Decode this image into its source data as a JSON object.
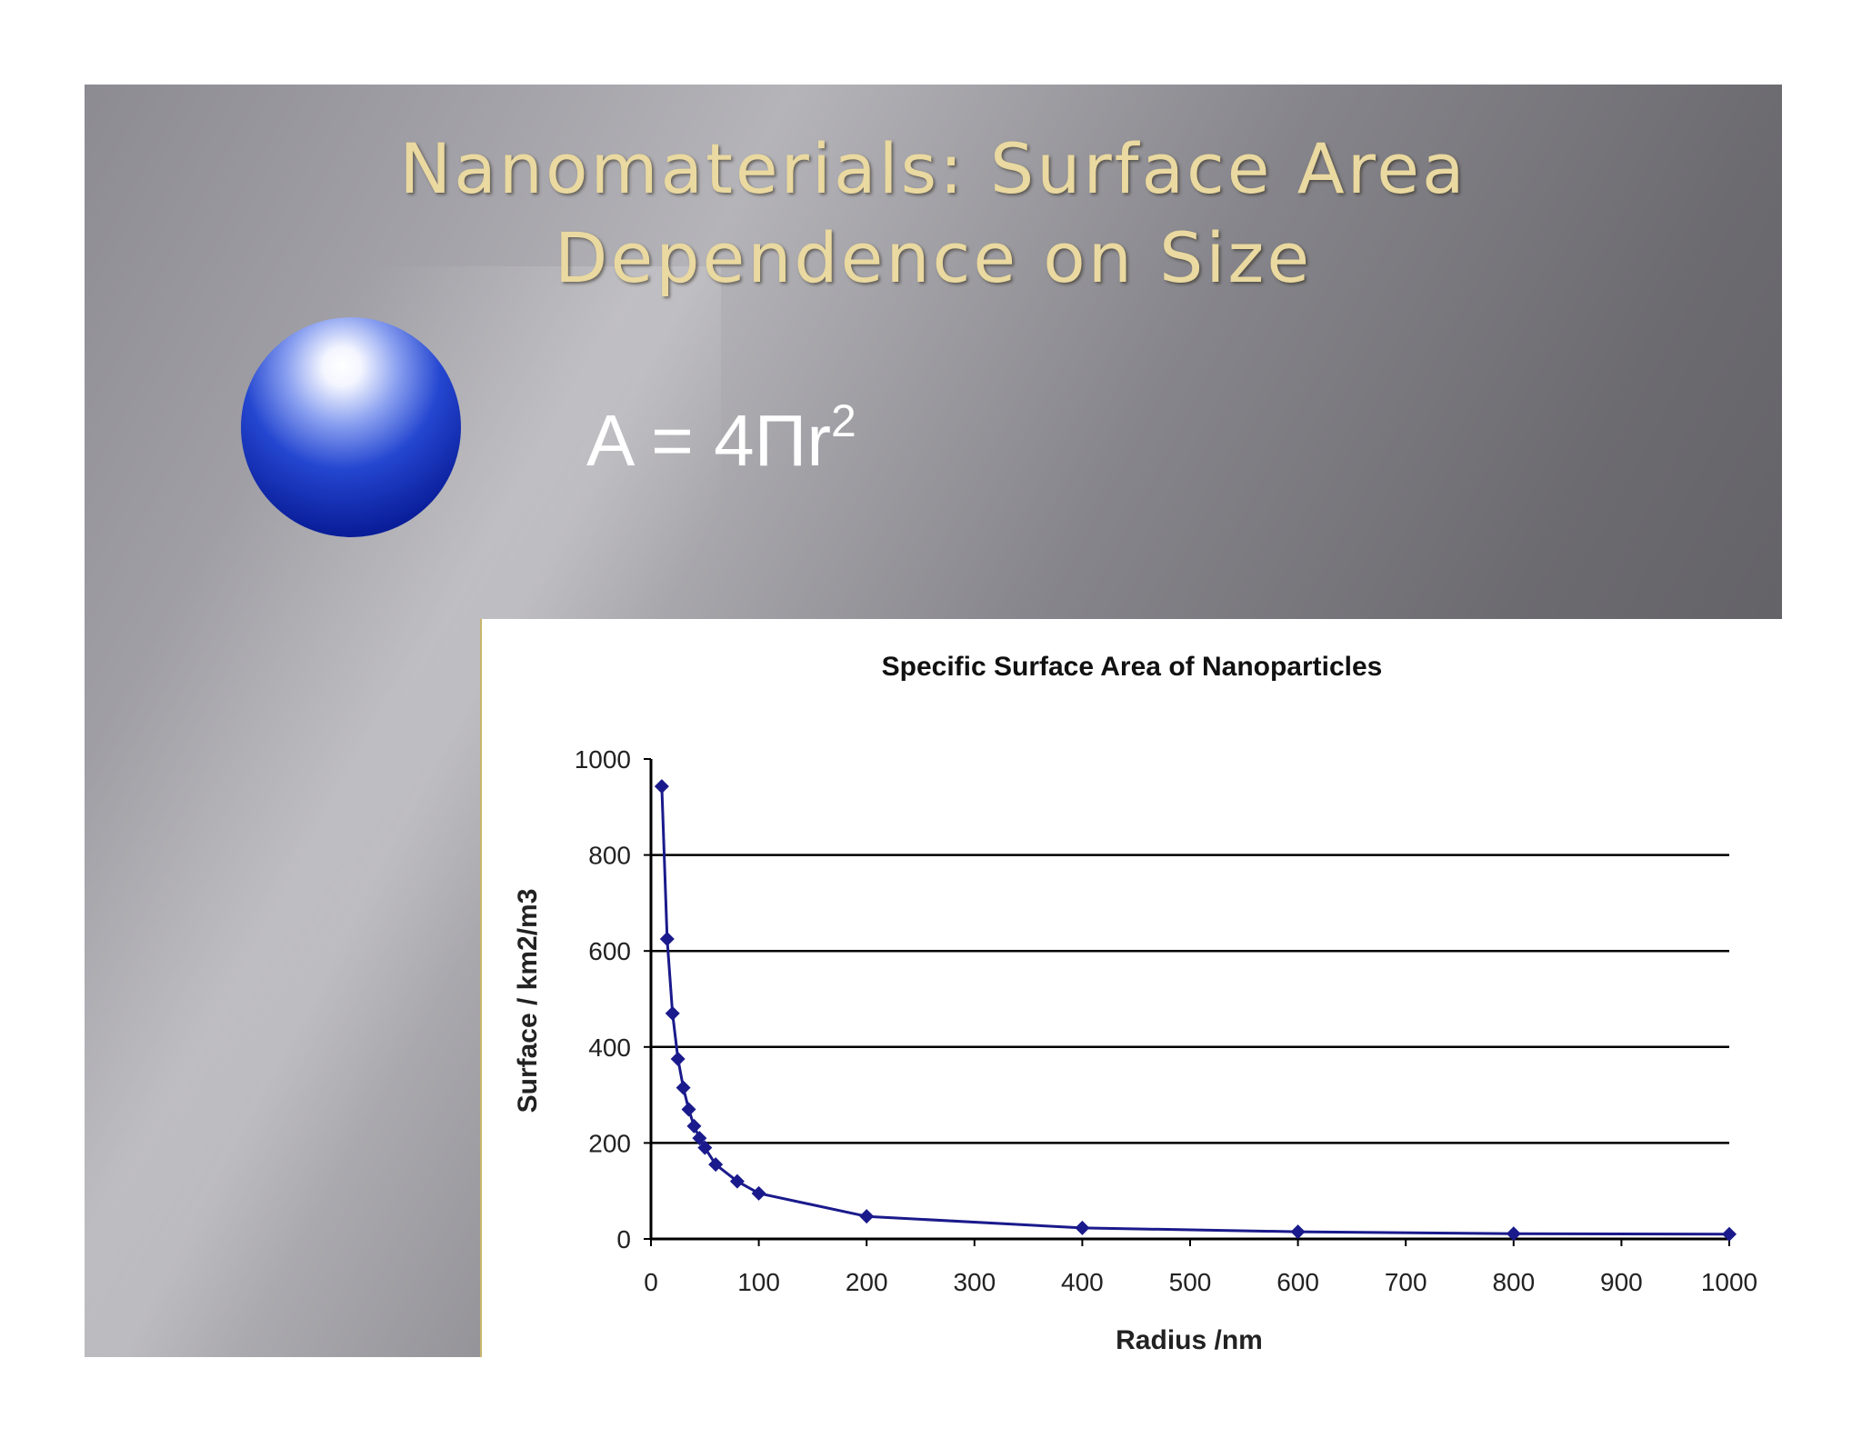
{
  "slide": {
    "title_line_1": "Nanomaterials:  Surface Area",
    "title_line_2": "Dependence on Size",
    "formula_base": "A = 4Πr",
    "formula_exponent": "2"
  },
  "colors": {
    "title": "#ead9a0",
    "series": "#1a1a8c",
    "sphere": "#1030b0"
  },
  "chart_data": {
    "type": "scatter",
    "title": "Specific Surface Area of Nanoparticles",
    "xlabel": "Radius /nm",
    "ylabel": "Surface / km2/m3",
    "xlim": [
      0,
      1000
    ],
    "ylim": [
      0,
      1000
    ],
    "xticks": [
      0,
      100,
      200,
      300,
      400,
      500,
      600,
      700,
      800,
      900,
      1000
    ],
    "yticks": [
      0,
      200,
      400,
      600,
      800,
      1000
    ],
    "grid": "horizontal",
    "legend": "none",
    "series": [
      {
        "x": [
          10,
          15,
          20,
          25,
          30,
          35,
          40,
          45,
          50,
          60,
          80,
          100,
          200,
          400,
          600,
          800,
          1000
        ],
        "y": [
          943,
          625,
          470,
          375,
          315,
          270,
          235,
          210,
          190,
          155,
          120,
          95,
          47,
          23,
          15,
          11,
          10
        ]
      }
    ]
  }
}
